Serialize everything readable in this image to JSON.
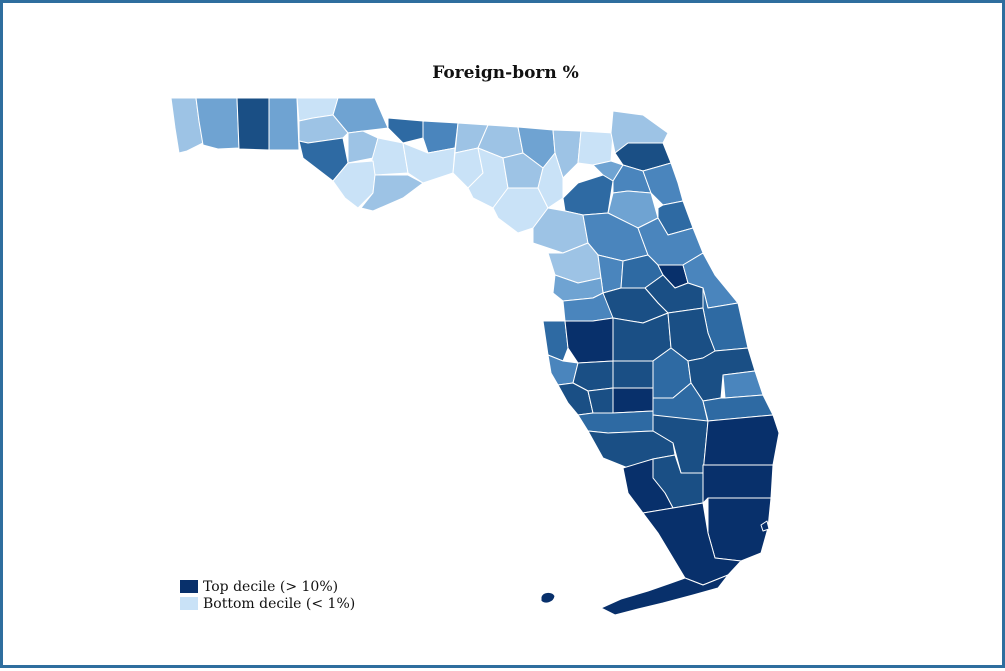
{
  "title": "Foreign-born %",
  "colors": {
    "q1": "#c9e2f7",
    "q2": "#9dc3e5",
    "q3": "#6fa3d2",
    "q4": "#4a85bd",
    "q5": "#2e6aa3",
    "q6": "#1a4f85",
    "q7": "#08306b",
    "border": "#ffffff",
    "frame": "#2f6e9e"
  },
  "legend": [
    {
      "label": "Top decile (> 10%)",
      "color": "#08306b"
    },
    {
      "label": "Bottom decile (< 1%)",
      "color": "#c9e2f7"
    }
  ]
}
